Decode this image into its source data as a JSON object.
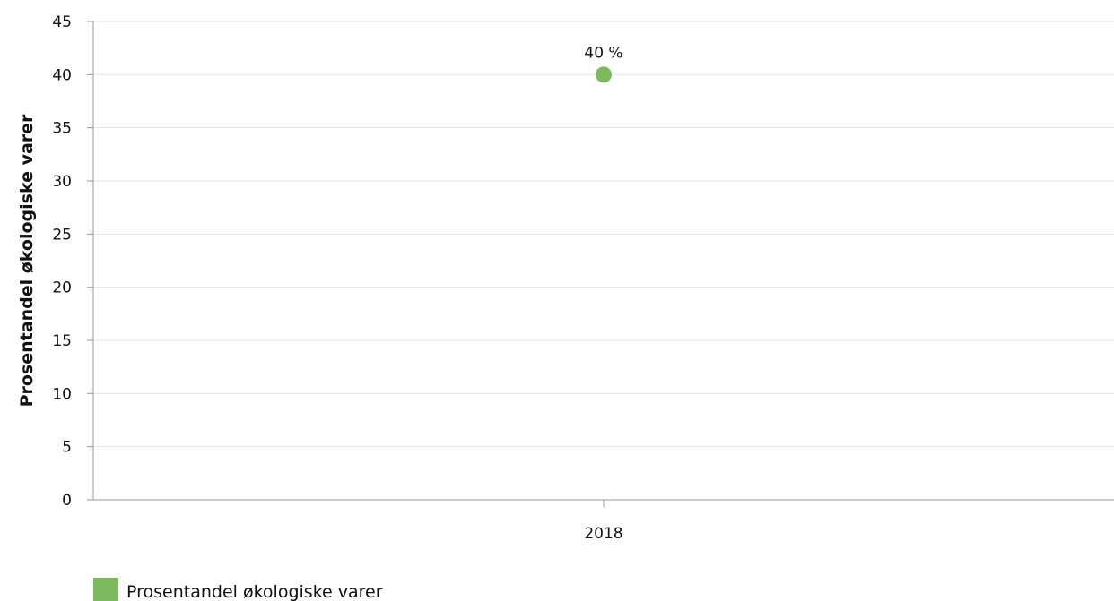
{
  "chart_data": {
    "type": "scatter",
    "title": "",
    "xlabel": "",
    "ylabel": "Prosentandel økologiske varer",
    "categories": [
      "2018"
    ],
    "ylim": [
      0,
      45
    ],
    "yticks": [
      0,
      5,
      10,
      15,
      20,
      25,
      30,
      35,
      40,
      45
    ],
    "grid": true,
    "legend_position": "bottom-left",
    "series": [
      {
        "name": "Prosentandel økologiske varer",
        "color": "#7cb85e",
        "values": [
          40
        ],
        "data_labels": [
          "40 %"
        ]
      }
    ]
  }
}
